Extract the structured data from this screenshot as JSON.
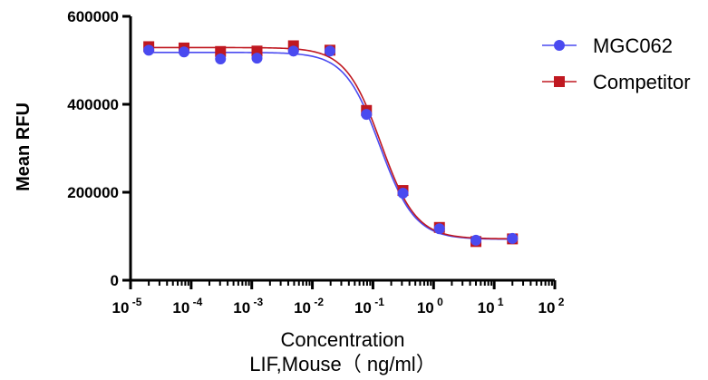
{
  "chart_data": {
    "type": "scatter",
    "title": "",
    "xlabel": "Concentration",
    "xlabel_line2": "LIF,Mouse（ ng/ml）",
    "ylabel": "Mean RFU",
    "xscale": "log",
    "xlim": [
      1e-05,
      100
    ],
    "ylim": [
      0,
      600000
    ],
    "x_ticks": [
      {
        "base": "10",
        "exp": "-5",
        "value": 1e-05
      },
      {
        "base": "10",
        "exp": "-4",
        "value": 0.0001
      },
      {
        "base": "10",
        "exp": "-3",
        "value": 0.001
      },
      {
        "base": "10",
        "exp": "-2",
        "value": 0.01
      },
      {
        "base": "10",
        "exp": "-1",
        "value": 0.1
      },
      {
        "base": "10",
        "exp": "0",
        "value": 1
      },
      {
        "base": "10",
        "exp": "1",
        "value": 10
      },
      {
        "base": "10",
        "exp": "2",
        "value": 100
      }
    ],
    "y_ticks": [
      {
        "label": "0",
        "value": 0
      },
      {
        "label": "200000",
        "value": 200000
      },
      {
        "label": "400000",
        "value": 400000
      },
      {
        "label": "600000",
        "value": 600000
      }
    ],
    "legend_position": "top-right",
    "series": [
      {
        "name": "MGC062",
        "color": "#4a4af0",
        "marker": "circle",
        "x": [
          2e-05,
          7.63e-05,
          0.000305,
          0.00122,
          0.00488,
          0.0195,
          0.0781,
          0.3125,
          1.25,
          5,
          20
        ],
        "y": [
          523000,
          519000,
          503000,
          505000,
          521000,
          521000,
          377000,
          198000,
          117000,
          91000,
          95000
        ],
        "fit": {
          "top": 518000,
          "bottom": 93000,
          "ec50": 0.13,
          "hill": 1.5
        }
      },
      {
        "name": "Competitor",
        "color": "#c01820",
        "marker": "square",
        "x": [
          2e-05,
          7.63e-05,
          0.000305,
          0.00122,
          0.00488,
          0.0195,
          0.0781,
          0.3125,
          1.25,
          5,
          20
        ],
        "y": [
          531000,
          528000,
          520000,
          521000,
          533000,
          523000,
          386000,
          204000,
          120000,
          88000,
          94000
        ],
        "fit": {
          "top": 529000,
          "bottom": 94000,
          "ec50": 0.135,
          "hill": 1.5
        }
      }
    ]
  }
}
